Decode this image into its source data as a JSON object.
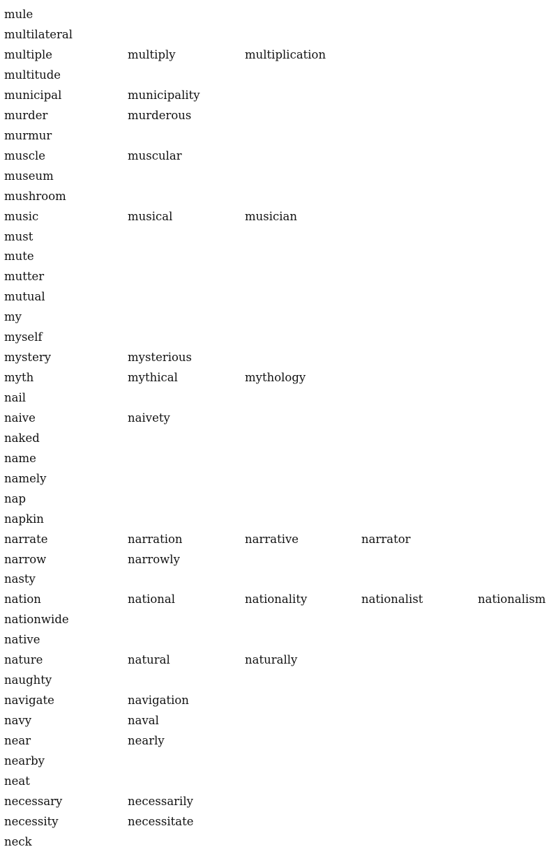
{
  "rows": [
    [
      "mule"
    ],
    [
      "multilateral"
    ],
    [
      "multiple",
      "multiply",
      "multiplication"
    ],
    [
      "multitude"
    ],
    [
      "municipal",
      "municipality"
    ],
    [
      "murder",
      "murderous"
    ],
    [
      "murmur"
    ],
    [
      "muscle",
      "muscular"
    ],
    [
      "museum"
    ],
    [
      "mushroom"
    ],
    [
      "music",
      "musical",
      "musician"
    ],
    [
      "must"
    ],
    [
      "mute"
    ],
    [
      "mutter"
    ],
    [
      "mutual"
    ],
    [
      "my"
    ],
    [
      "myself"
    ],
    [
      "mystery",
      "mysterious"
    ],
    [
      "myth",
      "mythical",
      "mythology"
    ],
    [
      "nail"
    ],
    [
      "naive",
      "naivety"
    ],
    [
      "naked"
    ],
    [
      "name"
    ],
    [
      "namely"
    ],
    [
      "nap"
    ],
    [
      "napkin"
    ],
    [
      "narrate",
      "narration",
      "narrative",
      "narrator"
    ],
    [
      "narrow",
      "narrowly"
    ],
    [
      "nasty"
    ],
    [
      "nation",
      "national",
      "nationality",
      "nationalist",
      "nationalism"
    ],
    [
      "nationwide"
    ],
    [
      "native"
    ],
    [
      "nature",
      "natural",
      "naturally"
    ],
    [
      "naughty"
    ],
    [
      "navigate",
      "navigation"
    ],
    [
      "navy",
      "naval"
    ],
    [
      "near",
      "nearly"
    ],
    [
      "nearby"
    ],
    [
      "neat"
    ],
    [
      "necessary",
      "necessarily"
    ],
    [
      "necessity",
      "necessitate"
    ],
    [
      "neck"
    ]
  ]
}
